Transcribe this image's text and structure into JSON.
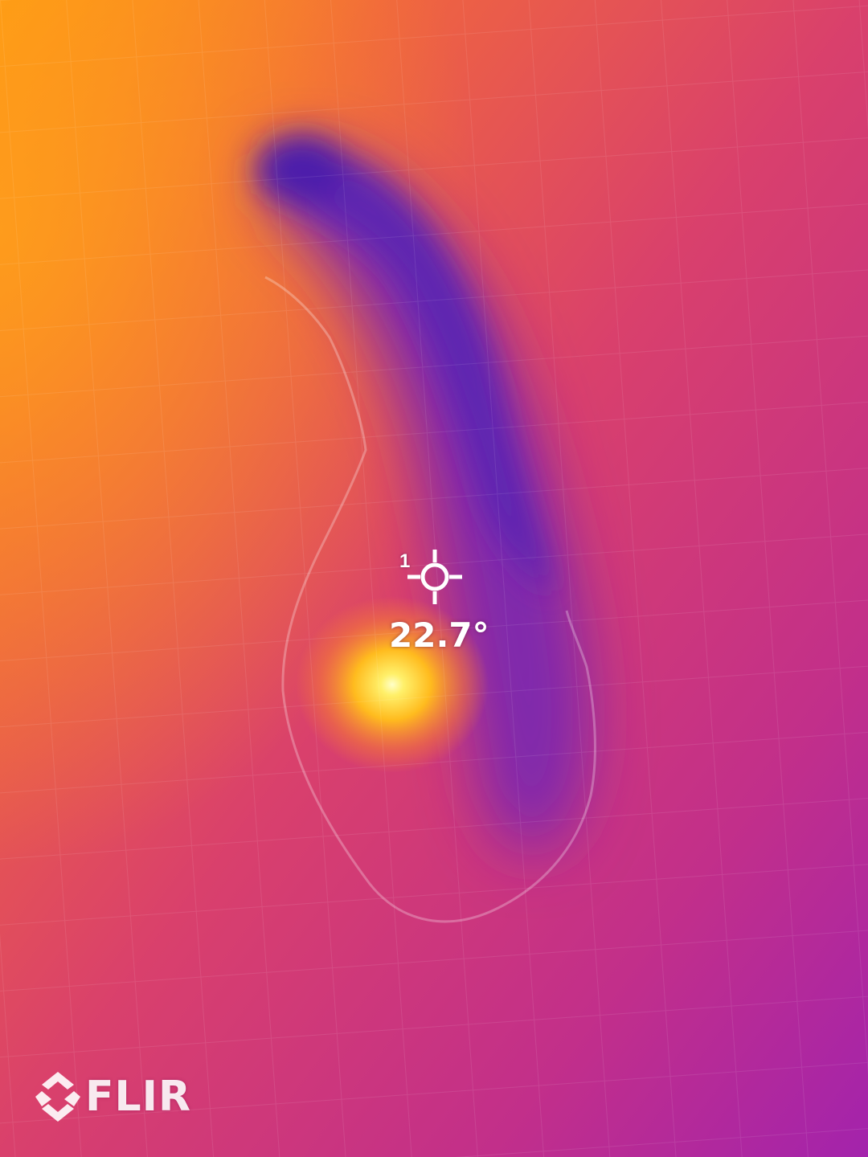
{
  "colors": {
    "hot": "#ffff70",
    "warm": "#ff9f1a",
    "mid": "#e0456a",
    "cool": "#a62aa8",
    "cold": "#4c1ea8",
    "overlay_text": "#ffffff"
  },
  "spot_meter": {
    "index": "1",
    "temperature": "22.7°",
    "icon": "crosshair-icon"
  },
  "brand": {
    "name": "FLIR",
    "icon": "flir-logo-icon"
  }
}
